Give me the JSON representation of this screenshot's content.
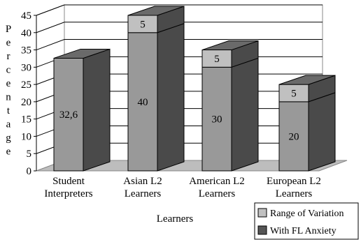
{
  "chart_data": {
    "type": "bar",
    "style": "3d-stacked",
    "title": "",
    "xlabel": "Learners",
    "ylabel": "Percentage",
    "ylim": [
      0,
      45
    ],
    "yticks": [
      0,
      5,
      10,
      15,
      20,
      25,
      30,
      35,
      40,
      45
    ],
    "grid": true,
    "legend_position": "bottom-right",
    "categories": [
      [
        "Student",
        "Interpreters"
      ],
      [
        "Asian L2",
        "Learners"
      ],
      [
        "American L2",
        "Learners"
      ],
      [
        "European L2",
        "Learners"
      ]
    ],
    "series": [
      {
        "name": "With FL Anxiety",
        "color": "#999999",
        "values": [
          32.6,
          40,
          30,
          20
        ],
        "labels": [
          "32,6",
          "40",
          "30",
          "20"
        ]
      },
      {
        "name": "Range of Variation",
        "color": "#c0c0c0",
        "values": [
          0,
          5,
          5,
          5
        ],
        "labels": [
          "",
          "5",
          "5",
          "5"
        ]
      }
    ],
    "legend": [
      "Range of Variation",
      "With FL Anxiety"
    ]
  }
}
